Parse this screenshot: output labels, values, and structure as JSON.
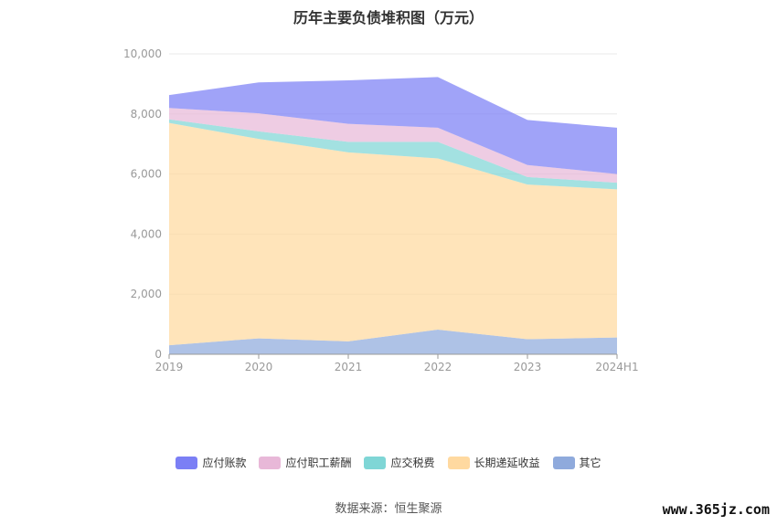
{
  "chart_data": {
    "type": "area",
    "stacked": true,
    "title": "历年主要负债堆积图（万元）",
    "categories": [
      "2019",
      "2020",
      "2021",
      "2022",
      "2023",
      "2024H1"
    ],
    "ylim": [
      0,
      10000
    ],
    "yticks": [
      "0",
      "2,000",
      "4,000",
      "6,000",
      "8,000",
      "10,000"
    ],
    "grid": true,
    "legend_position": "bottom",
    "series": [
      {
        "name": "其它",
        "color": "#8faadc",
        "values": [
          300,
          530,
          430,
          820,
          500,
          560
        ]
      },
      {
        "name": "长期递延收益",
        "color": "#ffd9a0",
        "values": [
          7400,
          6640,
          6290,
          5700,
          5150,
          4930
        ]
      },
      {
        "name": "应交税费",
        "color": "#7fd6d6",
        "values": [
          120,
          250,
          350,
          550,
          250,
          220
        ]
      },
      {
        "name": "应付职工薪酬",
        "color": "#e8b8d8",
        "values": [
          380,
          600,
          600,
          470,
          400,
          290
        ]
      },
      {
        "name": "应付账款",
        "color": "#7b7ff5",
        "values": [
          430,
          1030,
          1450,
          1690,
          1500,
          1540
        ]
      }
    ],
    "legend_order": [
      "应付账款",
      "应付职工薪酬",
      "应交税费",
      "长期递延收益",
      "其它"
    ]
  },
  "source_text": "数据来源：恒生聚源",
  "watermark_text": "www.365jz.com"
}
